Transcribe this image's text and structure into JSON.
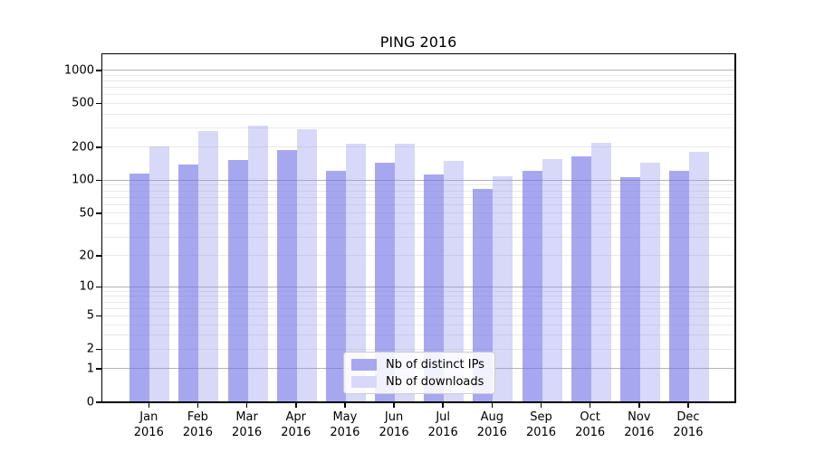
{
  "title": "PING 2016",
  "chart_data": {
    "type": "bar",
    "title": "PING 2016",
    "categories": [
      "Jan 2016",
      "Feb 2016",
      "Mar 2016",
      "Apr 2016",
      "May 2016",
      "Jun 2016",
      "Jul 2016",
      "Aug 2016",
      "Sep 2016",
      "Oct 2016",
      "Nov 2016",
      "Dec 2016"
    ],
    "series": [
      {
        "name": "Nb of distinct IPs",
        "color": "#a7a7f0",
        "values": [
          115,
          137,
          152,
          187,
          120,
          143,
          111,
          83,
          121,
          163,
          105,
          120
        ]
      },
      {
        "name": "Nb of downloads",
        "color": "#d8d8f8",
        "values": [
          200,
          280,
          308,
          289,
          211,
          213,
          149,
          108,
          153,
          215,
          144,
          178
        ]
      }
    ],
    "xlabel": "",
    "ylabel": "",
    "y_scale": "log(1+y)",
    "y_ticks": [
      0,
      1,
      2,
      5,
      10,
      20,
      50,
      100,
      200,
      500,
      1000
    ],
    "ylim": [
      0,
      1390
    ],
    "grid": {
      "show": true,
      "major_levels": [
        1,
        10,
        100,
        1000
      ],
      "minor_levels": "2-9 per decade",
      "orientation": "horizontal"
    },
    "legend": {
      "position": "inside-bottom-center",
      "entries": [
        "Nb of distinct IPs",
        "Nb of downloads"
      ]
    }
  },
  "colors": {
    "bar_dark": "#a7a7f0",
    "bar_light": "#d8d8f8",
    "grid_major": "#b2b2b2",
    "grid_minor": "#e9e9e9",
    "axis": "#000000",
    "background": "#ffffff"
  }
}
